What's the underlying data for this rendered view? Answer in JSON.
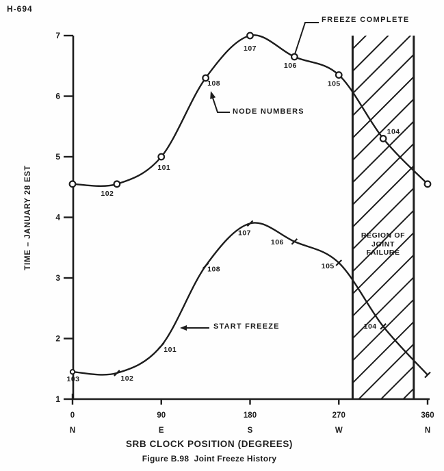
{
  "header": {
    "code": "H-694"
  },
  "annotations": {
    "freeze_complete": "FREEZE COMPLETE",
    "node_numbers": "NODE NUMBERS",
    "start_freeze": "START FREEZE",
    "region_line1": "REGION OF",
    "region_line2": "JOINT",
    "region_line3": "FAILURE"
  },
  "captions": {
    "xlabel": "SRB CLOCK POSITION (DEGREES)",
    "figure": "Figure B.98  Joint Freeze History",
    "ylabel": "TIME – JANUARY 28 EST"
  },
  "colors": {
    "ink": "#1d1d1d",
    "paper": "#fefefe"
  },
  "chart_data": {
    "type": "line",
    "title": "Figure B.98  Joint Freeze History",
    "xlabel": "SRB CLOCK POSITION (DEGREES)",
    "ylabel": "TIME – JANUARY 28 EST",
    "x_axis": {
      "range": [
        0,
        360
      ],
      "ticks": [
        {
          "deg": "0",
          "value": 0,
          "dir": "N"
        },
        {
          "deg": "90",
          "value": 90,
          "dir": "E"
        },
        {
          "deg": "180",
          "value": 180,
          "dir": "S"
        },
        {
          "deg": "270",
          "value": 270,
          "dir": "W"
        },
        {
          "deg": "360",
          "value": 360,
          "dir": "N"
        }
      ]
    },
    "y_axis": {
      "range": [
        1,
        7
      ],
      "ticks": [
        7,
        6,
        5,
        4,
        3,
        2,
        1
      ]
    },
    "region_of_joint_failure": {
      "label": "REGION OF JOINT FAILURE",
      "deg_range": [
        284,
        346
      ]
    },
    "series": [
      {
        "name": "FREEZE COMPLETE",
        "marker": "circle",
        "points": [
          {
            "deg": 0,
            "time": 4.55
          },
          {
            "deg": 45,
            "time": 4.55,
            "node": "102",
            "ldx": -14,
            "ldy": 17
          },
          {
            "deg": 90,
            "time": 5.0,
            "node": "101",
            "ldx": 4,
            "ldy": 19
          },
          {
            "deg": 135,
            "time": 6.3,
            "node": "108",
            "ldx": 12,
            "ldy": 11
          },
          {
            "deg": 180,
            "time": 7.0,
            "node": "107",
            "ldx": 0,
            "ldy": 22
          },
          {
            "deg": 225,
            "time": 6.65,
            "node": "106",
            "ldx": -6,
            "ldy": 16
          },
          {
            "deg": 270,
            "time": 6.35,
            "node": "105",
            "ldx": -7,
            "ldy": 16
          },
          {
            "deg": 315,
            "time": 5.3,
            "node": "104",
            "ldx": 15,
            "ldy": -7
          },
          {
            "deg": 360,
            "time": 4.55
          }
        ]
      },
      {
        "name": "START FREEZE",
        "marker": "tick",
        "points": [
          {
            "deg": 0,
            "time": 1.45,
            "node": "103",
            "ldx": 1,
            "ldy": 14,
            "marker": "circle-small"
          },
          {
            "deg": 45,
            "time": 1.43,
            "node": "102",
            "ldx": 15,
            "ldy": 11
          },
          {
            "deg": 90,
            "time": 1.88,
            "node": "101",
            "ldx": 13,
            "ldy": 9
          },
          {
            "deg": 135,
            "time": 3.2,
            "node": "108",
            "ldx": 12,
            "ldy": 8
          },
          {
            "deg": 180,
            "time": 3.9,
            "node": "107",
            "ldx": -8,
            "ldy": 17
          },
          {
            "deg": 225,
            "time": 3.6,
            "node": "106",
            "ldx": -25,
            "ldy": 4
          },
          {
            "deg": 270,
            "time": 3.25,
            "node": "105",
            "ldx": -16,
            "ldy": 8
          },
          {
            "deg": 315,
            "time": 2.2,
            "node": "104",
            "ldx": -19,
            "ldy": 3
          },
          {
            "deg": 360,
            "time": 1.4
          }
        ]
      }
    ]
  }
}
